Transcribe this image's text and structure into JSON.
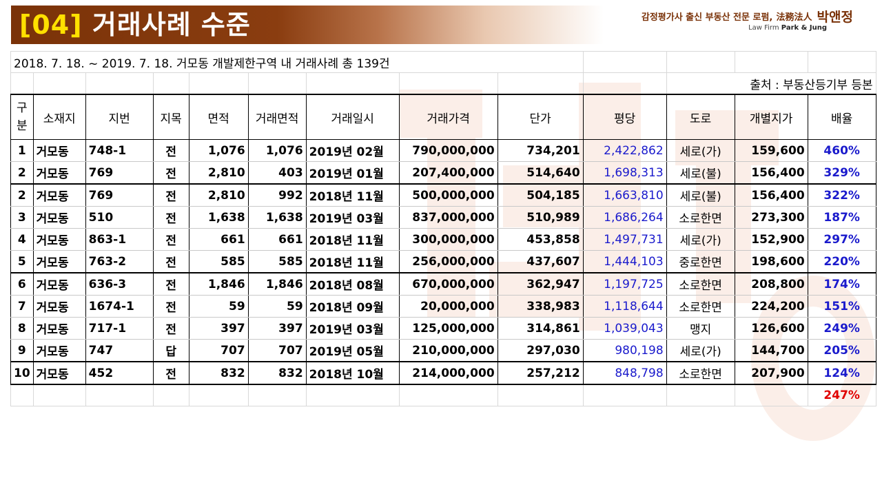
{
  "slide": {
    "title_num": "[04]",
    "title_text": "거래사례 수준",
    "firm_tagline": "감정평가사 출신 부동산 전문 로펌,",
    "firm_hanja": "法務法人",
    "firm_name": "박앤정",
    "firm_en_prefix": "Law Firm",
    "firm_en_name": "Park & Jung"
  },
  "table": {
    "info": "2018. 7. 18. ~ 2019. 7. 18. 거모동 개발제한구역 내 거래사례 총 139건",
    "source": "출처 : 부동산등기부 등본",
    "headers": [
      "구분",
      "소재지",
      "지번",
      "지목",
      "면적",
      "거래면적",
      "거래일시",
      "거래가격",
      "단가",
      "평당",
      "도로",
      "개별지가",
      "배율"
    ],
    "rows": [
      [
        "1",
        "거모동",
        "748-1",
        "전",
        "1,076",
        "1,076",
        "2019년 02월",
        "790,000,000",
        "734,201",
        "2,422,862",
        "세로(가)",
        "159,600",
        "460%"
      ],
      [
        "2",
        "거모동",
        "769",
        "전",
        "2,810",
        "403",
        "2019년 01월",
        "207,400,000",
        "514,640",
        "1,698,313",
        "세로(불)",
        "156,400",
        "329%"
      ],
      [
        "2",
        "거모동",
        "769",
        "전",
        "2,810",
        "992",
        "2018년 11월",
        "500,000,000",
        "504,185",
        "1,663,810",
        "세로(불)",
        "156,400",
        "322%"
      ],
      [
        "3",
        "거모동",
        "510",
        "전",
        "1,638",
        "1,638",
        "2019년 03월",
        "837,000,000",
        "510,989",
        "1,686,264",
        "소로한면",
        "273,300",
        "187%"
      ],
      [
        "4",
        "거모동",
        "863-1",
        "전",
        "661",
        "661",
        "2018년 11월",
        "300,000,000",
        "453,858",
        "1,497,731",
        "세로(가)",
        "152,900",
        "297%"
      ],
      [
        "5",
        "거모동",
        "763-2",
        "전",
        "585",
        "585",
        "2018년 11월",
        "256,000,000",
        "437,607",
        "1,444,103",
        "중로한면",
        "198,600",
        "220%"
      ],
      [
        "6",
        "거모동",
        "636-3",
        "전",
        "1,846",
        "1,846",
        "2018년 08월",
        "670,000,000",
        "362,947",
        "1,197,725",
        "소로한면",
        "208,800",
        "174%"
      ],
      [
        "7",
        "거모동",
        "1674-1",
        "전",
        "59",
        "59",
        "2018년 09월",
        "20,000,000",
        "338,983",
        "1,118,644",
        "소로한면",
        "224,200",
        "151%"
      ],
      [
        "8",
        "거모동",
        "717-1",
        "전",
        "397",
        "397",
        "2019년 03월",
        "125,000,000",
        "314,861",
        "1,039,043",
        "맹지",
        "126,600",
        "249%"
      ],
      [
        "9",
        "거모동",
        "747",
        "답",
        "707",
        "707",
        "2019년 05월",
        "210,000,000",
        "297,030",
        "980,198",
        "세로(가)",
        "144,700",
        "205%"
      ],
      [
        "10",
        "거모동",
        "452",
        "전",
        "832",
        "832",
        "2018년 10월",
        "214,000,000",
        "257,212",
        "848,798",
        "소로한면",
        "207,900",
        "124%"
      ]
    ],
    "average": "247%"
  },
  "colors": {
    "header_brown": "#7a3208",
    "title_number": "#ffe000",
    "per_pyeong_blue": "#1a1acc",
    "average_red": "#e00000"
  }
}
